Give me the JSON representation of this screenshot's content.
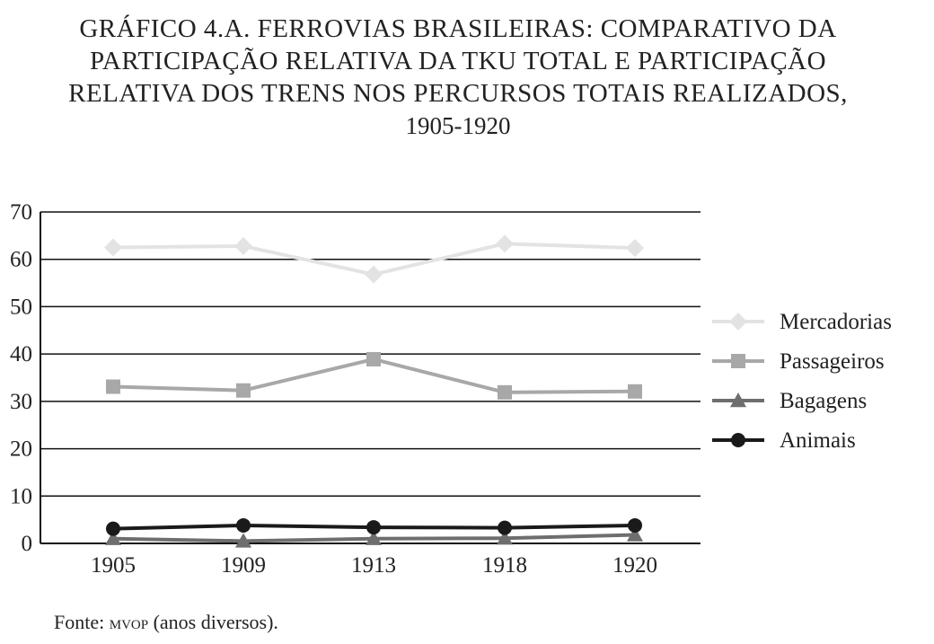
{
  "title": {
    "line1": "GRÁFICO 4.A. FERROVIAS BRASILEIRAS: COMPARATIVO DA",
    "line2": "PARTICIPAÇÃO RELATIVA DA TKU TOTAL E PARTICIPAÇÃO",
    "line3": "RELATIVA DOS TRENS NOS PERCURSOS TOTAIS REALIZADOS,",
    "years": "1905-1920"
  },
  "source": {
    "prefix": "Fonte: ",
    "org": "mvop",
    "suffix": " (anos diversos)."
  },
  "chart_data": {
    "type": "line",
    "categories": [
      "1905",
      "1909",
      "1913",
      "1918",
      "1920"
    ],
    "ylim": [
      0,
      70
    ],
    "yticks": [
      0,
      10,
      20,
      30,
      40,
      50,
      60,
      70
    ],
    "grid": true,
    "legend_position": "right",
    "series": [
      {
        "name": "Mercadorias",
        "values": [
          62.5,
          62.8,
          56.8,
          63.3,
          62.4
        ],
        "color": "#e3e3e3",
        "marker": "diamond"
      },
      {
        "name": "Passageiros",
        "values": [
          33.1,
          32.3,
          38.9,
          31.9,
          32.1
        ],
        "color": "#a8a8a8",
        "marker": "square"
      },
      {
        "name": "Bagagens",
        "values": [
          1.0,
          0.5,
          1.0,
          1.1,
          1.8
        ],
        "color": "#6e6e6e",
        "marker": "triangle"
      },
      {
        "name": "Animais",
        "values": [
          3.1,
          3.8,
          3.4,
          3.3,
          3.8
        ],
        "color": "#1a1a1a",
        "marker": "circle"
      }
    ]
  }
}
